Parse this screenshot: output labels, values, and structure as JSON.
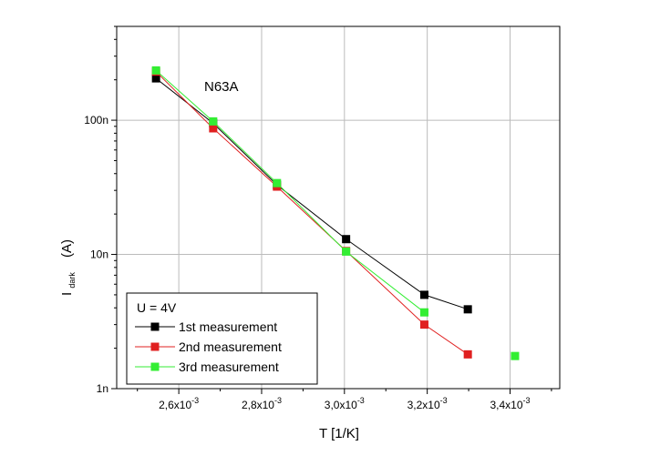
{
  "chart_data": {
    "type": "line",
    "annotation": "N63A",
    "xlabel": "T [1/K]",
    "ylabel_main": "I",
    "ylabel_sub": "dark",
    "ylabel_unit": "(A)",
    "xlim": [
      0.00245,
      0.00352
    ],
    "ylim": [
      1e-09,
      5e-07
    ],
    "yscale": "log",
    "x_ticks": [
      {
        "value": 0.0026,
        "mantissa": "2,6x10",
        "exp": "-3"
      },
      {
        "value": 0.0028,
        "mantissa": "2,8x10",
        "exp": "-3"
      },
      {
        "value": 0.003,
        "mantissa": "3,0x10",
        "exp": "-3"
      },
      {
        "value": 0.0032,
        "mantissa": "3,2x10",
        "exp": "-3"
      },
      {
        "value": 0.0034,
        "mantissa": "3,4x10",
        "exp": "-3"
      }
    ],
    "y_ticks": [
      {
        "value": 1e-09,
        "label": "1n"
      },
      {
        "value": 1e-08,
        "label": "10n"
      },
      {
        "value": 1e-07,
        "label": "100n"
      }
    ],
    "grid": true,
    "legend": {
      "position": "bottom-left",
      "title": "U = 4V"
    },
    "series": [
      {
        "name": "1st measurement",
        "color": "#000000",
        "x": [
          0.002545,
          0.002683,
          0.002837,
          0.003004,
          0.003193,
          0.003298
        ],
        "y": [
          2.05e-07,
          9.5e-08,
          3.3e-08,
          1.3e-08,
          5e-09,
          3.9e-09
        ]
      },
      {
        "name": "2nd measurement",
        "color": "#e02020",
        "x": [
          0.002545,
          0.002683,
          0.002837,
          0.003004,
          0.003193,
          0.003298
        ],
        "y": [
          2.3e-07,
          8.7e-08,
          3.2e-08,
          1.06e-08,
          3e-09,
          1.8e-09
        ]
      },
      {
        "name": "3rd measurement",
        "color": "#33ee33",
        "x": [
          0.002545,
          0.002683,
          0.002837,
          0.003004,
          0.003193,
          0.003412
        ],
        "y": [
          2.35e-07,
          9.8e-08,
          3.4e-08,
          1.05e-08,
          3.7e-09,
          1.75e-09
        ],
        "connected_points": 5
      }
    ]
  }
}
